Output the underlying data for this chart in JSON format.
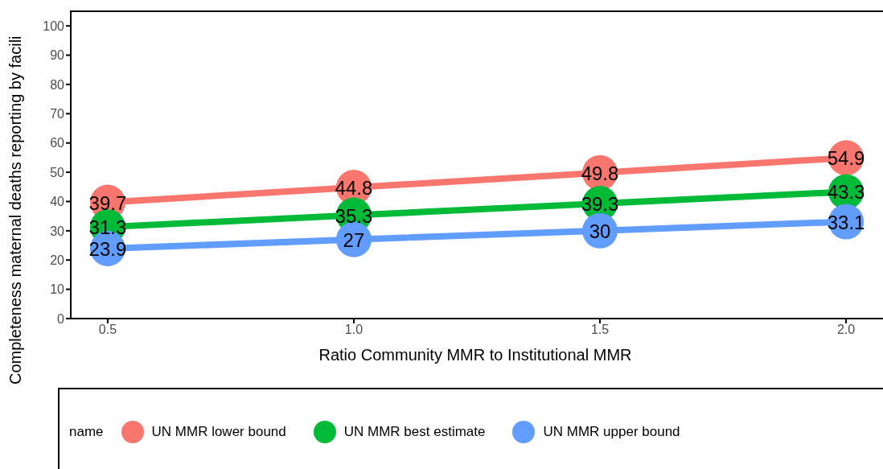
{
  "chart_data": {
    "type": "line",
    "xlabel": "Ratio Community MMR to Institutional MMR",
    "ylabel": "Completeness maternal deaths reporting by facili",
    "legend_title": "name",
    "x": [
      0.5,
      1.0,
      1.5,
      2.0
    ],
    "series": [
      {
        "name": "UN MMR lower bound",
        "color": "#f8766d",
        "values": [
          39.7,
          44.8,
          49.8,
          54.9
        ]
      },
      {
        "name": "UN MMR best estimate",
        "color": "#00ba38",
        "values": [
          31.3,
          35.3,
          39.3,
          43.3
        ]
      },
      {
        "name": "UN MMR upper bound",
        "color": "#619cff",
        "values": [
          23.9,
          27,
          30,
          33.1
        ]
      }
    ],
    "xlim": [
      0.425,
      2.075
    ],
    "xticks": [
      {
        "value": 0.5,
        "label": "0.5"
      },
      {
        "value": 1.0,
        "label": "1.0"
      },
      {
        "value": 1.5,
        "label": "1.5"
      },
      {
        "value": 2.0,
        "label": "2.0"
      }
    ],
    "ylim": [
      0,
      105
    ],
    "yticks": [
      0,
      10,
      20,
      30,
      40,
      50,
      60,
      70,
      80,
      90,
      100
    ],
    "grid": false,
    "legend": "bottom",
    "marker": "circle",
    "line_style": "solid",
    "data_labels": true
  }
}
